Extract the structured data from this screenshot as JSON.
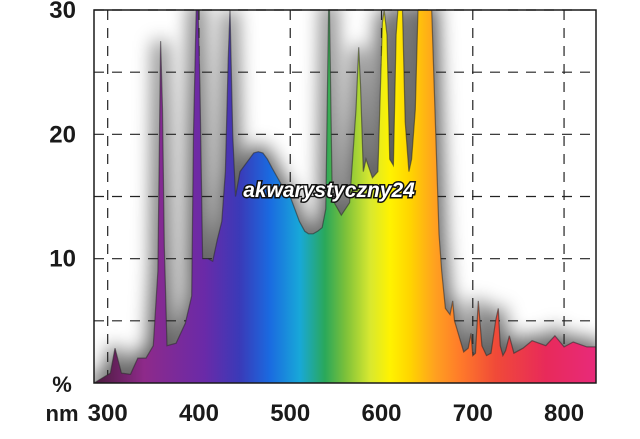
{
  "chart_data": {
    "type": "area",
    "title": "",
    "x_unit": "nm",
    "y_unit": "%",
    "xlim": [
      285,
      835
    ],
    "ylim": [
      0,
      30
    ],
    "x_ticks": [
      300,
      400,
      500,
      600,
      700,
      800
    ],
    "y_ticks": [
      10,
      20,
      30
    ],
    "grid": "dashed",
    "fill": "visible-spectrum gradient",
    "series": [
      {
        "x": [
          285,
          303,
          308,
          315,
          325,
          333,
          342,
          350,
          355,
          358,
          360,
          362,
          365,
          375,
          385,
          392,
          394,
          397,
          399,
          401,
          404,
          410,
          415,
          420,
          425,
          429,
          432,
          434,
          437,
          440,
          445,
          450,
          455,
          460,
          465,
          470,
          475,
          480,
          490,
          500,
          510,
          516,
          520,
          525,
          530,
          535,
          539,
          541,
          542,
          543,
          546,
          549,
          556,
          565,
          572,
          575,
          577,
          580,
          583,
          590,
          596,
          601,
          603,
          606,
          609,
          613,
          616,
          618,
          623,
          626,
          630,
          633,
          637,
          640,
          645,
          650,
          655,
          663,
          666,
          670,
          675,
          678,
          680,
          690,
          695,
          698,
          700,
          703,
          706,
          710,
          715,
          720,
          725,
          728,
          730,
          733,
          736,
          740,
          745,
          755,
          765,
          780,
          790,
          800,
          810,
          825,
          835
        ],
        "y": [
          0,
          0.8,
          2.8,
          0.8,
          0.7,
          2,
          2,
          3,
          9,
          27.5,
          22,
          11,
          3,
          3.2,
          4.8,
          7,
          20,
          30,
          30,
          24,
          10,
          10,
          9.8,
          11.5,
          13,
          17,
          26,
          30,
          20,
          15,
          17,
          17.5,
          18,
          18.5,
          18.6,
          18.5,
          18,
          17.3,
          16,
          15,
          13,
          12.2,
          12,
          12,
          12.2,
          12.5,
          14,
          25,
          30,
          30,
          15,
          14.4,
          13.5,
          14.5,
          22,
          27,
          24,
          17,
          18,
          16.5,
          17,
          29,
          30,
          28,
          18,
          17.5,
          28,
          30,
          30,
          21,
          17,
          18,
          22,
          30,
          30,
          30,
          30,
          12,
          9,
          6,
          5.5,
          6.6,
          5,
          2.5,
          2.8,
          4,
          2.2,
          2.4,
          6.6,
          3,
          2.2,
          2.4,
          5,
          6,
          3,
          2.2,
          2.6,
          3.8,
          2.4,
          2.8,
          3.4,
          3,
          3.8,
          2.9,
          3.3,
          2.9,
          2.9
        ]
      }
    ]
  },
  "watermark": "akwarystyczny24"
}
